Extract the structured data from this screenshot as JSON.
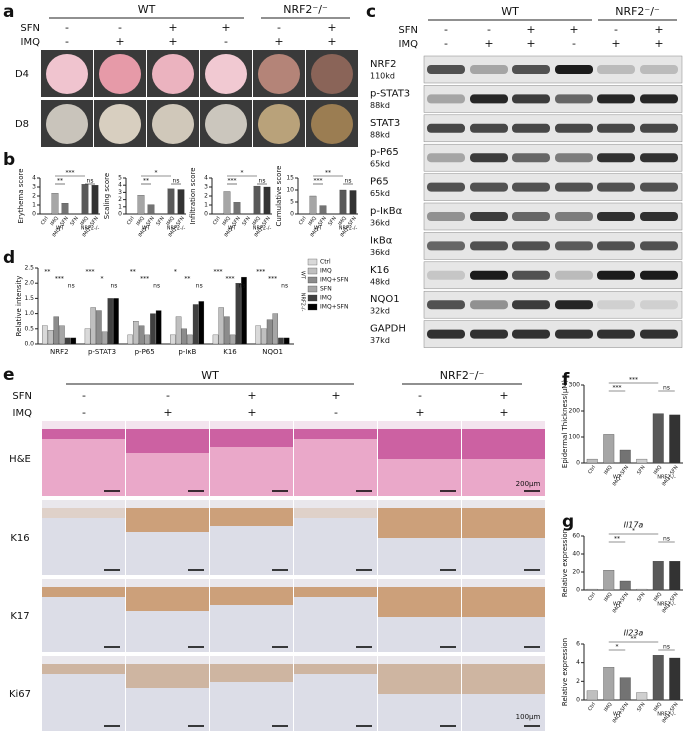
{
  "panels": {
    "a": {
      "letter": "a",
      "groups": [
        "WT",
        "NRF2⁻/⁻"
      ],
      "rows": [
        {
          "label": "SFN",
          "signs": [
            "-",
            "-",
            "+",
            "+",
            "-",
            "+"
          ]
        },
        {
          "label": "IMQ",
          "signs": [
            "-",
            "+",
            "+",
            "-",
            "+",
            "+"
          ]
        }
      ],
      "row_labels": [
        "D4",
        "D8"
      ]
    },
    "b": {
      "letter": "b",
      "charts": [
        {
          "type": "bar",
          "ylabel": "Erythema score",
          "categories": [
            "Ctrl",
            "IMQ",
            "IMQ+SFN",
            "SFN",
            "IMQ",
            "IMQ+SFN"
          ],
          "groups": [
            "WT",
            "NRF2-/-"
          ],
          "values": [
            0,
            2.3,
            1.2,
            0,
            3.3,
            3.2
          ],
          "colors": [
            "#bfbfbf",
            "#a6a6a6",
            "#737373",
            "#d0d0d0",
            "#595959",
            "#333333"
          ],
          "ylim": [
            0,
            4
          ],
          "yticks": [
            0,
            1,
            2,
            3,
            4
          ],
          "annotations": [
            "**",
            "***",
            "ns"
          ]
        },
        {
          "type": "bar",
          "ylabel": "Scaling score",
          "categories": [
            "Ctrl",
            "IMQ",
            "IMQ+SFN",
            "SFN",
            "IMQ",
            "IMQ+SFN"
          ],
          "groups": [
            "WT",
            "NRF2-/-"
          ],
          "values": [
            0,
            2.6,
            1.3,
            0,
            3.5,
            3.4
          ],
          "colors": [
            "#bfbfbf",
            "#a6a6a6",
            "#737373",
            "#d0d0d0",
            "#595959",
            "#333333"
          ],
          "ylim": [
            0,
            5
          ],
          "yticks": [
            0,
            1,
            2,
            3,
            4,
            5
          ],
          "annotations": [
            "**",
            "*",
            "ns"
          ]
        },
        {
          "type": "bar",
          "ylabel": "Infiltration score",
          "categories": [
            "Ctrl",
            "IMQ",
            "IMQ+SFN",
            "SFN",
            "IMQ",
            "IMQ+SFN"
          ],
          "groups": [
            "WT",
            "NRF2-/-"
          ],
          "values": [
            0,
            2.5,
            1.3,
            0,
            3.1,
            3.0
          ],
          "colors": [
            "#bfbfbf",
            "#a6a6a6",
            "#737373",
            "#d0d0d0",
            "#595959",
            "#333333"
          ],
          "ylim": [
            0,
            4
          ],
          "yticks": [
            0,
            1,
            2,
            3,
            4
          ],
          "annotations": [
            "***",
            "*",
            "ns"
          ]
        },
        {
          "type": "bar",
          "ylabel": "Cumulative score",
          "categories": [
            "Ctrl",
            "IMQ",
            "IMQ+SFN",
            "SFN",
            "IMQ",
            "IMQ+SFN"
          ],
          "groups": [
            "WT",
            "NRF2-/-"
          ],
          "values": [
            0,
            7.5,
            3.5,
            0,
            10,
            9.8
          ],
          "colors": [
            "#bfbfbf",
            "#a6a6a6",
            "#737373",
            "#d0d0d0",
            "#595959",
            "#333333"
          ],
          "ylim": [
            0,
            15
          ],
          "yticks": [
            0,
            5,
            10,
            15
          ],
          "annotations": [
            "***",
            "**",
            "ns"
          ]
        }
      ]
    },
    "c": {
      "letter": "c",
      "groups": [
        "WT",
        "NRF2⁻/⁻"
      ],
      "rows": [
        {
          "label": "SFN",
          "signs": [
            "-",
            "-",
            "+",
            "+",
            "-",
            "+"
          ]
        },
        {
          "label": "IMQ",
          "signs": [
            "-",
            "+",
            "+",
            "-",
            "+",
            "+"
          ]
        }
      ],
      "blots": [
        {
          "protein": "NRF2",
          "size": "110kd"
        },
        {
          "protein": "p-STAT3",
          "size": "88kd"
        },
        {
          "protein": "STAT3",
          "size": "88kd"
        },
        {
          "protein": "p-P65",
          "size": "65kd"
        },
        {
          "protein": "P65",
          "size": "65kd"
        },
        {
          "protein": "p-IκBα",
          "size": "36kd"
        },
        {
          "protein": "IκBα",
          "size": "36kd"
        },
        {
          "protein": "K16",
          "size": "48kd"
        },
        {
          "protein": "NQO1",
          "size": "32kd"
        },
        {
          "protein": "GAPDH",
          "size": "37kd"
        }
      ]
    },
    "d": {
      "letter": "d",
      "chart": {
        "type": "bar",
        "ylabel": "Relative intensity",
        "categories": [
          "NRF2",
          "p-STAT3",
          "p-P65",
          "p-IκB",
          "K16",
          "NQO1"
        ],
        "groups": [
          "WT",
          "NRF2-/-"
        ],
        "series": [
          {
            "name": "Ctrl",
            "color": "#d9d9d9",
            "values": [
              0.6,
              0.5,
              0.3,
              0.3,
              0.3,
              0.6
            ]
          },
          {
            "name": "IMQ",
            "color": "#bfbfbf",
            "values": [
              0.45,
              1.2,
              0.75,
              0.9,
              1.2,
              0.5
            ]
          },
          {
            "name": "IMQ+SFN",
            "color": "#8c8c8c",
            "values": [
              0.9,
              1.1,
              0.6,
              0.5,
              0.9,
              0.8
            ]
          },
          {
            "name": "SFN",
            "color": "#a6a6a6",
            "values": [
              0.6,
              0.4,
              0.3,
              0.3,
              0.3,
              1.0
            ]
          },
          {
            "name": "IMQ",
            "color": "#404040",
            "values": [
              0.2,
              1.5,
              1.0,
              1.3,
              2.0,
              0.2
            ]
          },
          {
            "name": "IMQ+SFN",
            "color": "#000000",
            "values": [
              0.2,
              1.5,
              1.1,
              1.4,
              2.2,
              0.2
            ]
          }
        ],
        "ylim": [
          0,
          2.5
        ],
        "yticks": [
          {
            "value": 0,
            "label": "0.0"
          },
          0.5,
          {
            "value": 1,
            "label": "1.0"
          },
          1.5,
          {
            "value": 2,
            "label": "2.0"
          },
          2.5
        ],
        "annotations": [
          [
            "**",
            "***",
            "ns"
          ],
          [
            "***",
            "*",
            "ns"
          ],
          [
            "**",
            "***",
            "ns"
          ],
          [
            "*",
            "**",
            "ns"
          ],
          [
            "***",
            "***",
            "ns"
          ],
          [
            "***",
            "***",
            "ns"
          ]
        ]
      }
    },
    "e": {
      "letter": "e",
      "groups": [
        "WT",
        "NRF2⁻/⁻"
      ],
      "rows": [
        {
          "label": "SFN",
          "signs": [
            "-",
            "-",
            "+",
            "+",
            "-",
            "+"
          ]
        },
        {
          "label": "IMQ",
          "signs": [
            "-",
            "+",
            "+",
            "-",
            "+",
            "+"
          ]
        }
      ],
      "row_labels": [
        "H&E",
        "K16",
        "K17",
        "Ki67"
      ],
      "scale_bars": [
        "200μm",
        "100μm"
      ]
    },
    "f": {
      "letter": "f",
      "chart": {
        "type": "bar",
        "ylabel": "Epidermal Thickness(μM)",
        "categories": [
          "Ctrl",
          "IMQ",
          "IMQ+SFN",
          "SFN",
          "IMQ",
          "IMQ+SFN"
        ],
        "groups": [
          "WT",
          "NRF2-/-"
        ],
        "values": [
          15,
          110,
          50,
          15,
          190,
          185
        ],
        "colors": [
          "#bfbfbf",
          "#a6a6a6",
          "#737373",
          "#d0d0d0",
          "#595959",
          "#333333"
        ],
        "ylim": [
          0,
          300
        ],
        "yticks": [
          0,
          100,
          200,
          300
        ],
        "annotations": [
          "***",
          "***",
          "ns"
        ]
      }
    },
    "g": {
      "letter": "g",
      "charts": [
        {
          "type": "bar",
          "title": "Il17a",
          "ylabel": "Relative expression",
          "categories": [
            "Ctrl",
            "IMQ",
            "IMQ+SFN",
            "SFN",
            "IMQ",
            "IMQ+SFN"
          ],
          "groups": [
            "WT",
            "NRF2-/-"
          ],
          "values": [
            1,
            22,
            10,
            1,
            32,
            32
          ],
          "colors": [
            "#bfbfbf",
            "#a6a6a6",
            "#737373",
            "#d0d0d0",
            "#595959",
            "#333333"
          ],
          "ylim": [
            0,
            60
          ],
          "yticks": [
            0,
            20,
            40,
            60
          ],
          "annotations": [
            "**",
            "*",
            "ns"
          ]
        },
        {
          "type": "bar",
          "title": "Il23a",
          "ylabel": "Relative expression",
          "categories": [
            "Ctrl",
            "IMQ",
            "IMQ+SFN",
            "SFN",
            "IMQ",
            "IMQ+SFN"
          ],
          "groups": [
            "WT",
            "NRF2-/-"
          ],
          "values": [
            1,
            3.5,
            2.4,
            0.8,
            4.8,
            4.5
          ],
          "colors": [
            "#bfbfbf",
            "#a6a6a6",
            "#737373",
            "#d0d0d0",
            "#595959",
            "#333333"
          ],
          "ylim": [
            0,
            6
          ],
          "yticks": [
            0,
            2,
            4,
            6
          ],
          "annotations": [
            "*",
            "**",
            "ns"
          ]
        }
      ]
    }
  }
}
